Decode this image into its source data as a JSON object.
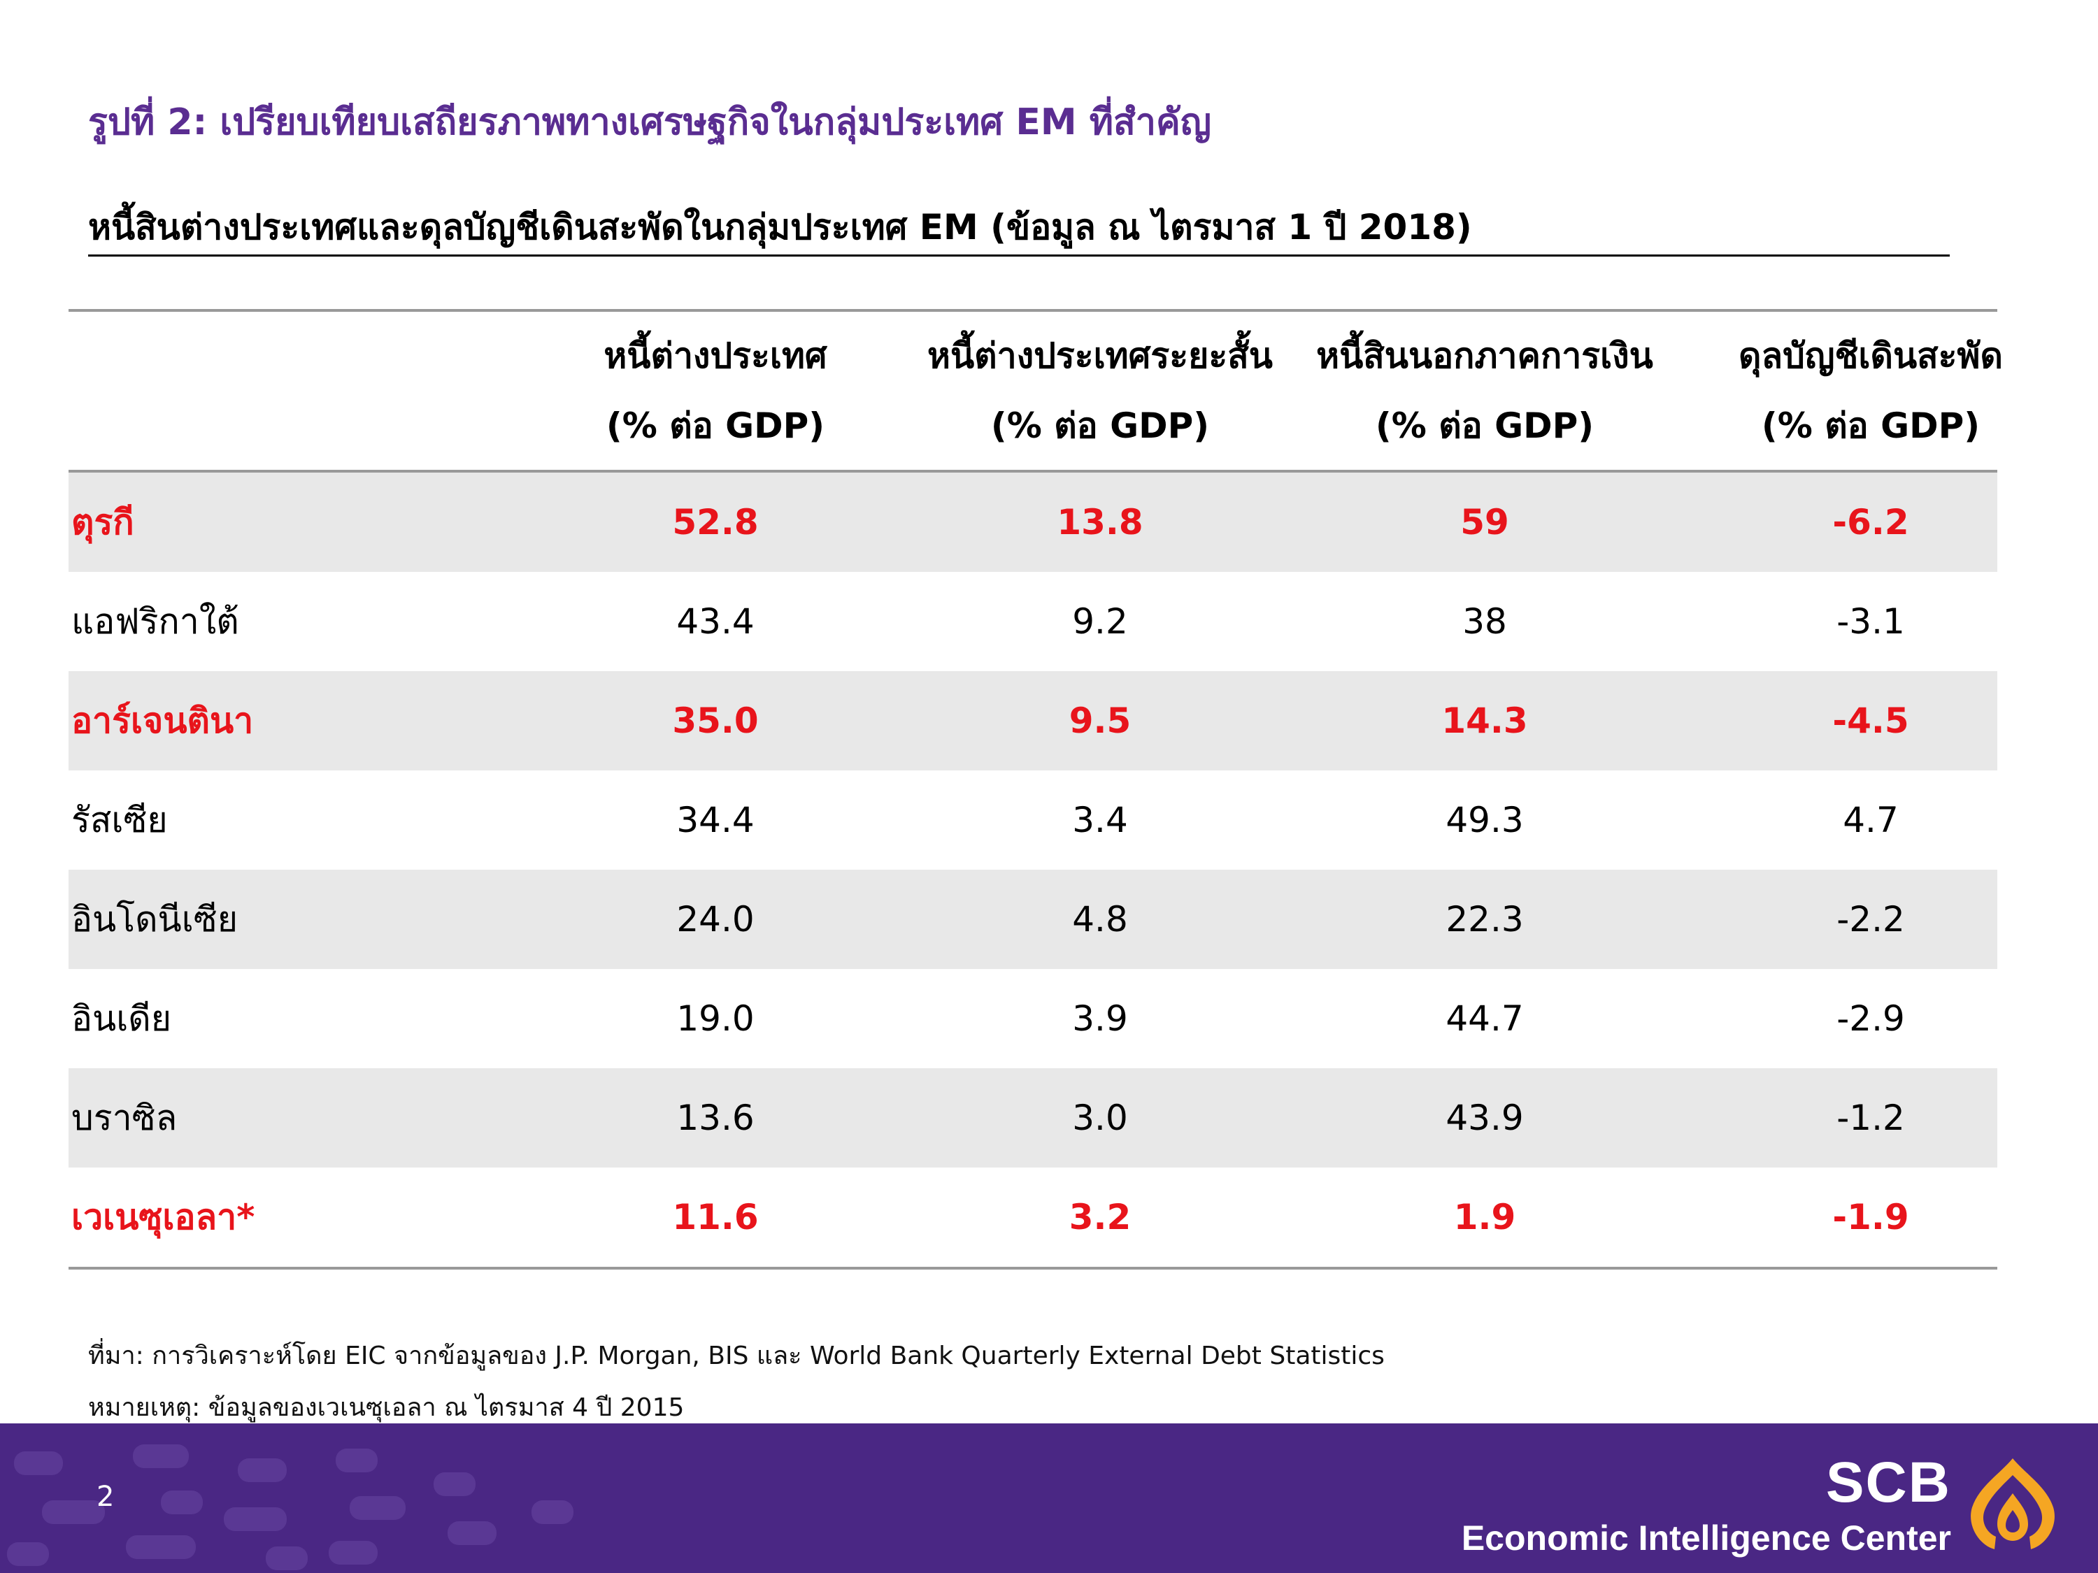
{
  "figure_title": "รูปที่ 2: เปรียบเทียบเสถียรภาพทางเศรษฐกิจในกลุ่มประเทศ EM ที่สำคัญ",
  "subtitle": "หนี้สินต่างประเทศและดุลบัญชีเดินสะพัดในกลุ่มประเทศ EM (ข้อมูล ณ ไตรมาส 1 ปี 2018)",
  "table": {
    "headers": [
      {
        "line1": "หนี้ต่างประเทศ",
        "line2": "(% ต่อ GDP)"
      },
      {
        "line1": "หนี้ต่างประเทศระยะสั้น",
        "line2": "(% ต่อ GDP)"
      },
      {
        "line1": "หนี้สินนอกภาคการเงิน",
        "line2": "(% ต่อ GDP)"
      },
      {
        "line1": "ดุลบัญชีเดินสะพัด",
        "line2": "(% ต่อ GDP)"
      }
    ],
    "rows": [
      {
        "country": "ตุรกี",
        "values": [
          "52.8",
          "13.8",
          "59",
          "-6.2"
        ],
        "highlight": true
      },
      {
        "country": "แอฟริกาใต้",
        "values": [
          "43.4",
          "9.2",
          "38",
          "-3.1"
        ],
        "highlight": false
      },
      {
        "country": "อาร์เจนตินา",
        "values": [
          "35.0",
          "9.5",
          "14.3",
          "-4.5"
        ],
        "highlight": true
      },
      {
        "country": "รัสเซีย",
        "values": [
          "34.4",
          "3.4",
          "49.3",
          "4.7"
        ],
        "highlight": false
      },
      {
        "country": "อินโดนีเซีย",
        "values": [
          "24.0",
          "4.8",
          "22.3",
          "-2.2"
        ],
        "highlight": false
      },
      {
        "country": "อินเดีย",
        "values": [
          "19.0",
          "3.9",
          "44.7",
          "-2.9"
        ],
        "highlight": false
      },
      {
        "country": "บราซิล",
        "values": [
          "13.6",
          "3.0",
          "43.9",
          "-1.2"
        ],
        "highlight": false
      },
      {
        "country": "เวเนซุเอลา*",
        "values": [
          "11.6",
          "3.2",
          "1.9",
          "-1.9"
        ],
        "highlight": true
      }
    ]
  },
  "notes": {
    "source": "ที่มา: การวิเคราะห์โดย EIC จากข้อมูลของ J.P. Morgan, BIS และ World Bank Quarterly External Debt Statistics",
    "remark": "หมายเหตุ: ข้อมูลของเวเนซุเอลา ณ ไตรมาส 4 ปี 2015"
  },
  "footer": {
    "page_number": "2",
    "brand_name": "SCB",
    "brand_sub": "Economic Intelligence Center",
    "background_color": "#4a2784",
    "logo_color": "#f5a623"
  },
  "colors": {
    "title": "#5a2d91",
    "highlight_text": "#e8141b",
    "row_shade": "#e8e8e8"
  }
}
